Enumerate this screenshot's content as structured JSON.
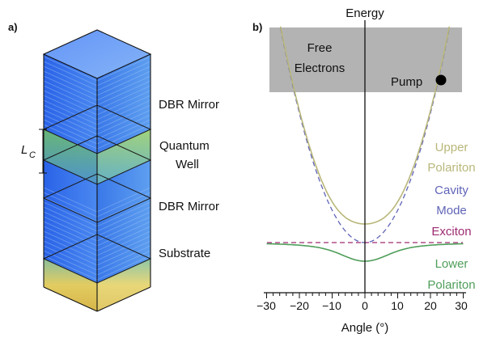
{
  "panel_a": {
    "tag": "a)",
    "labels": {
      "dbr_top": "DBR Mirror",
      "quantum_line1": "Quantum",
      "quantum_line2": "Well",
      "dbr_bottom": "DBR Mirror",
      "substrate": "Substrate",
      "lc_main": "L",
      "lc_sub": "C"
    }
  },
  "panel_b": {
    "tag": "b)",
    "y_axis_title": "Energy",
    "x_axis_title": "Angle (°)",
    "region_label_1": "Free",
    "region_label_2": "Electrons",
    "pump_label": "Pump",
    "upper_1": "Upper",
    "upper_2": "Polariton",
    "cavity_1": "Cavity",
    "cavity_2": "Mode",
    "exciton": "Exciton",
    "lower_1": "Lower",
    "lower_2": "Polariton",
    "ticks": [
      "−30",
      "−20",
      "−10",
      "0",
      "10",
      "20",
      "30"
    ],
    "colors": {
      "upper": "#b9b77a",
      "cavity": "#6064b6",
      "exciton": "#9d2b72",
      "lower": "#4f9e5a",
      "gray_region": "#b3b3b3"
    }
  }
}
